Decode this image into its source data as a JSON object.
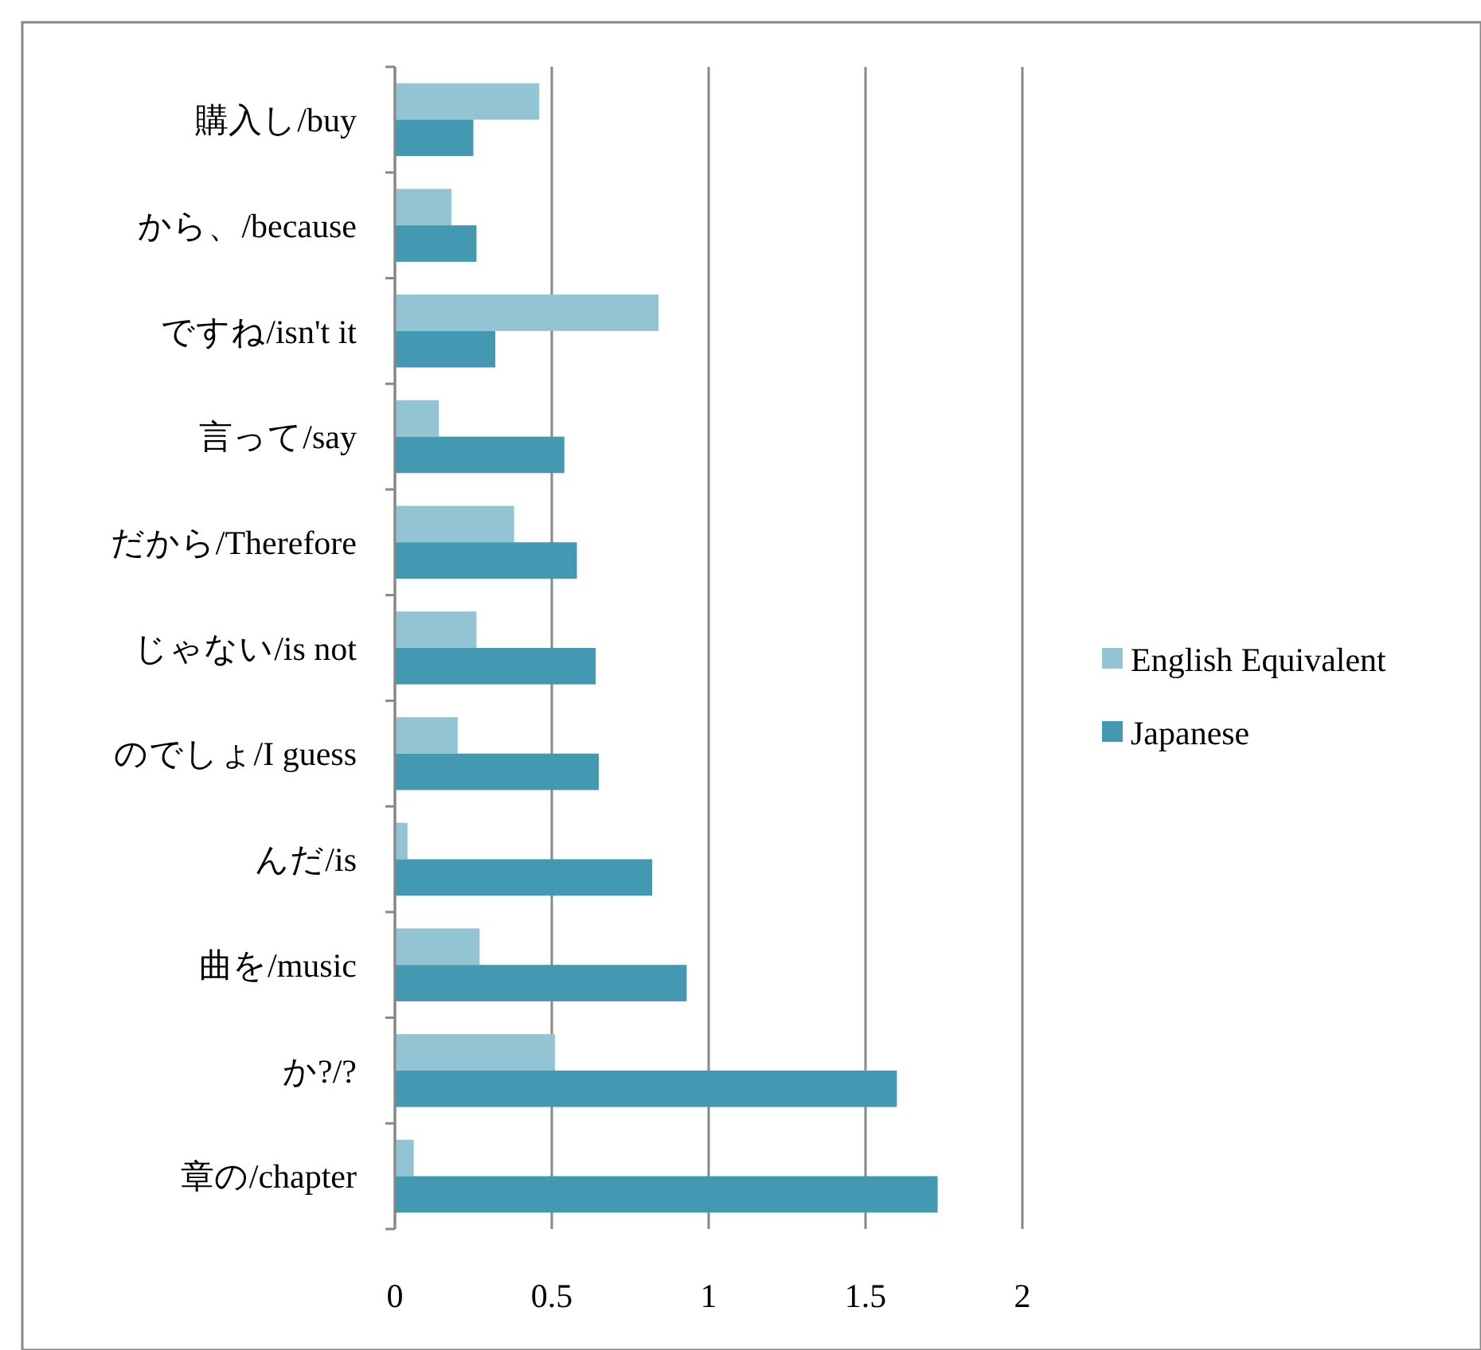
{
  "chart_data": {
    "type": "bar",
    "orientation": "horizontal",
    "categories": [
      "購入し/buy",
      "から、/because",
      "ですね/isn't it",
      "言って/say",
      "だから/Therefore",
      "じゃない/is not",
      "のでしょ/I guess",
      "んだ/is",
      "曲を/music",
      "か?/?",
      "章の/chapter"
    ],
    "series": [
      {
        "name": "English Equivalent",
        "color": "#93c4d4",
        "values": [
          0.46,
          0.18,
          0.84,
          0.14,
          0.38,
          0.26,
          0.2,
          0.04,
          0.27,
          0.51,
          0.06
        ]
      },
      {
        "name": "Japanese",
        "color": "#4399b1",
        "values": [
          0.25,
          0.26,
          0.32,
          0.54,
          0.58,
          0.64,
          0.65,
          0.82,
          0.93,
          1.6,
          1.73
        ]
      }
    ],
    "xlim": [
      0,
      2
    ],
    "xticks": [
      0,
      0.5,
      1,
      1.5,
      2
    ],
    "grid": "x",
    "legend": "right"
  }
}
